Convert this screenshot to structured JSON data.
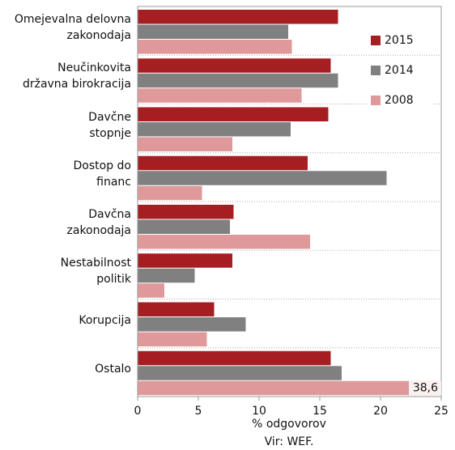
{
  "chart_data": {
    "type": "hbar",
    "categories": [
      "Omejevalna delovna\nzakonodaja",
      "Neučinkovita\ndržavna birokracija",
      "Davčne\nstopnje",
      "Dostop do\nfinanc",
      "Davčna\nzakonodaja",
      "Nestabilnost\npolitik",
      "Korupcija",
      "Ostalo"
    ],
    "series": [
      {
        "name": "2015",
        "color": "#a51e22",
        "values": [
          16.5,
          15.9,
          15.7,
          14.0,
          7.9,
          7.8,
          6.3,
          15.9
        ]
      },
      {
        "name": "2014",
        "color": "#808080",
        "values": [
          12.4,
          16.5,
          12.6,
          20.5,
          7.6,
          4.7,
          8.9,
          16.8
        ]
      },
      {
        "name": "2008",
        "color": "#e0999a",
        "values": [
          12.7,
          13.5,
          7.8,
          5.3,
          14.2,
          2.2,
          5.7,
          38.6
        ],
        "value_labels": [
          null,
          null,
          null,
          null,
          null,
          null,
          null,
          "38,6"
        ]
      }
    ],
    "xlim": [
      0,
      25
    ],
    "xticks": [
      0,
      5,
      10,
      15,
      20,
      25
    ],
    "xlabel": "% odgovorov",
    "source": "Vir: WEF.",
    "legend": "right"
  }
}
